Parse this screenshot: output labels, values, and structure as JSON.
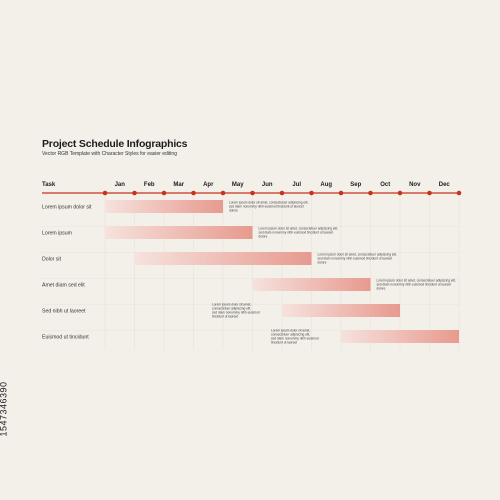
{
  "header": {
    "title": "Project Schedule Infographics",
    "subtitle": "Vector RGB Template with Character Styles for easier editing"
  },
  "side_code": "1547346390",
  "colors": {
    "accent": "#c8321e",
    "bar_light": "#f6e2dd",
    "bar_dark": "#e79a8f",
    "grid": "#e4ded6"
  },
  "chart_data": {
    "type": "bar",
    "task_header": "Task",
    "months": [
      "Jan",
      "Feb",
      "Mar",
      "Apr",
      "May",
      "Jun",
      "Jul",
      "Aug",
      "Sep",
      "Oct",
      "Nov",
      "Dec"
    ],
    "tasks": [
      {
        "name": "Lorem ipsum dolor sit",
        "start": 0,
        "end": 4,
        "desc": [
          "Lorem ipsum dolor sit amet, consectetuer adipiscing elit,",
          "sed diam nonummy nibh euismod tincidunt ut laoreet",
          "dolore"
        ]
      },
      {
        "name": "Lorem ipsum",
        "start": 0,
        "end": 5,
        "desc": [
          "Lorem ipsum dolor sit amet, consectetuer adipiscing elit,",
          "sed diam nonummy nibh euismod tincidunt ut laoreet",
          "dolore"
        ]
      },
      {
        "name": "Dolor sit",
        "start": 1,
        "end": 7,
        "desc": [
          "Lorem ipsum dolor sit amet, consectetuer adipiscing elit,",
          "sed diam nonummy nibh euismod tincidunt ut laoreet",
          "dolore"
        ]
      },
      {
        "name": "Amet diam sed elit",
        "start": 5,
        "end": 9,
        "desc": [
          "Lorem ipsum dolor sit amet, consectetuer adipiscing elit,",
          "sed diam nonummy nibh euismod tincidunt ut laoreet",
          "dolore"
        ]
      },
      {
        "name": "Sed nibh ut laoreet",
        "start": 6,
        "end": 10,
        "desc": [
          "Lorem ipsum dolor sit amet,",
          "consectetuer adipiscing elit,",
          "sed diam nonummy nibh euismod",
          "tincidunt ut laoreet"
        ]
      },
      {
        "name": "Euismod ut tincidunt",
        "start": 8,
        "end": 12,
        "desc": [
          "Lorem ipsum dolor sit amet,",
          "consectetuer adipiscing elit,",
          "sed diam nonummy nibh euismod",
          "tincidunt ut laoreet"
        ]
      }
    ]
  }
}
